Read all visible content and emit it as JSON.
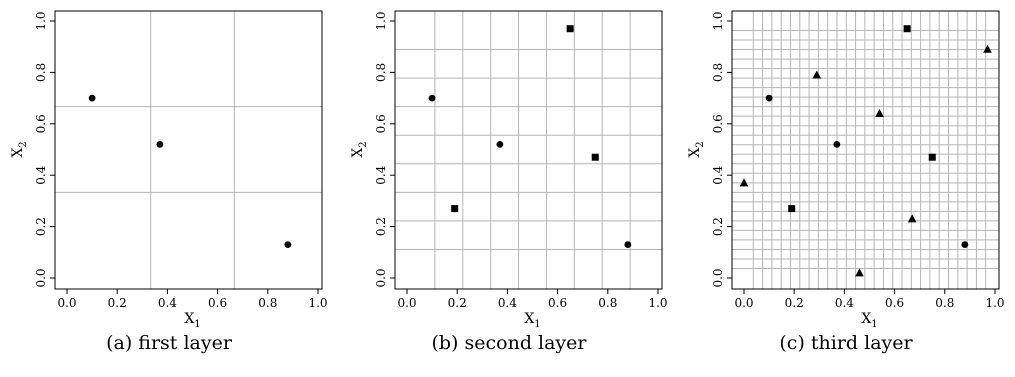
{
  "chart_data": [
    {
      "type": "scatter",
      "caption": "(a) first layer",
      "xlabel": "X",
      "xlabel_sub": "1",
      "ylabel": "X",
      "ylabel_sub": "2",
      "xlim": [
        0,
        1
      ],
      "ylim": [
        0,
        1
      ],
      "xticks": [
        "0.0",
        "0.2",
        "0.4",
        "0.6",
        "0.8",
        "1.0"
      ],
      "yticks": [
        "0.0",
        "0.2",
        "0.4",
        "0.6",
        "0.8",
        "1.0"
      ],
      "grid_divisions": 3,
      "series": [
        {
          "marker": "circle",
          "points": [
            [
              0.1,
              0.7
            ],
            [
              0.37,
              0.52
            ],
            [
              0.88,
              0.13
            ]
          ]
        }
      ]
    },
    {
      "type": "scatter",
      "caption": "(b) second layer",
      "xlabel": "X",
      "xlabel_sub": "1",
      "ylabel": "X",
      "ylabel_sub": "2",
      "xlim": [
        0,
        1
      ],
      "ylim": [
        0,
        1
      ],
      "xticks": [
        "0.0",
        "0.2",
        "0.4",
        "0.6",
        "0.8",
        "1.0"
      ],
      "yticks": [
        "0.0",
        "0.2",
        "0.4",
        "0.6",
        "0.8",
        "1.0"
      ],
      "grid_divisions": 9,
      "series": [
        {
          "marker": "circle",
          "points": [
            [
              0.1,
              0.7
            ],
            [
              0.37,
              0.52
            ],
            [
              0.88,
              0.13
            ]
          ]
        },
        {
          "marker": "square",
          "points": [
            [
              0.19,
              0.27
            ],
            [
              0.65,
              0.97
            ],
            [
              0.75,
              0.47
            ]
          ]
        }
      ]
    },
    {
      "type": "scatter",
      "caption": "(c) third layer",
      "xlabel": "X",
      "xlabel_sub": "1",
      "ylabel": "X",
      "ylabel_sub": "2",
      "xlim": [
        0,
        1
      ],
      "ylim": [
        0,
        1
      ],
      "xticks": [
        "0.0",
        "0.2",
        "0.4",
        "0.6",
        "0.8",
        "1.0"
      ],
      "yticks": [
        "0.0",
        "0.2",
        "0.4",
        "0.6",
        "0.8",
        "1.0"
      ],
      "grid_divisions": 27,
      "series": [
        {
          "marker": "circle",
          "points": [
            [
              0.1,
              0.7
            ],
            [
              0.37,
              0.52
            ],
            [
              0.88,
              0.13
            ]
          ]
        },
        {
          "marker": "square",
          "points": [
            [
              0.19,
              0.27
            ],
            [
              0.65,
              0.97
            ],
            [
              0.75,
              0.47
            ]
          ]
        },
        {
          "marker": "triangle",
          "points": [
            [
              0.0,
              0.37
            ],
            [
              0.29,
              0.79
            ],
            [
              0.46,
              0.02
            ],
            [
              0.54,
              0.64
            ],
            [
              0.67,
              0.23
            ],
            [
              0.97,
              0.89
            ]
          ]
        }
      ]
    }
  ]
}
